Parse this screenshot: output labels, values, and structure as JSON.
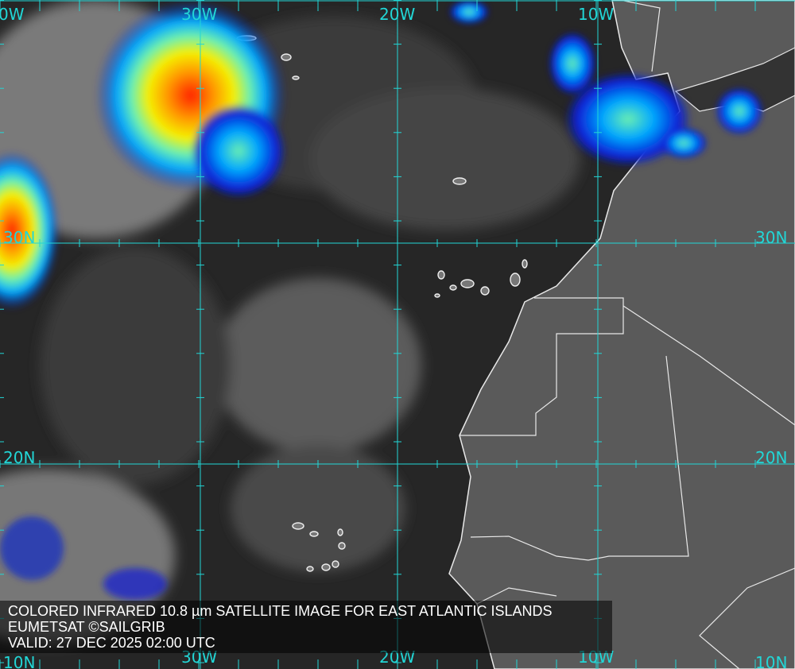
{
  "caption": {
    "title": "COLORED INFRARED 10.8 µm SATELLITE IMAGE FOR EAST ATLANTIC ISLANDS",
    "credit": "EUMETSAT ©SAILGRIB",
    "valid": "VALID:  27 DEC 2025 02:00 UTC"
  },
  "grid": {
    "top_labels": [
      "0W",
      "30W",
      "20W",
      "10W"
    ],
    "bottom_labels": [
      "10N",
      "30W",
      "20W",
      "10W"
    ],
    "left_labels": [
      "30N",
      "20N"
    ],
    "right_labels": [
      "30N",
      "20N",
      "10N"
    ]
  },
  "colors": {
    "grid": "#22d6d6",
    "border": "#e8e8e8",
    "ocean": "#2a2a2a",
    "land": "#5a5a5a",
    "cold_cloud_scale": [
      "#0a1fd6",
      "#00a8ff",
      "#6cf0b0",
      "#f5f000",
      "#ff9a00",
      "#ff2000"
    ]
  }
}
